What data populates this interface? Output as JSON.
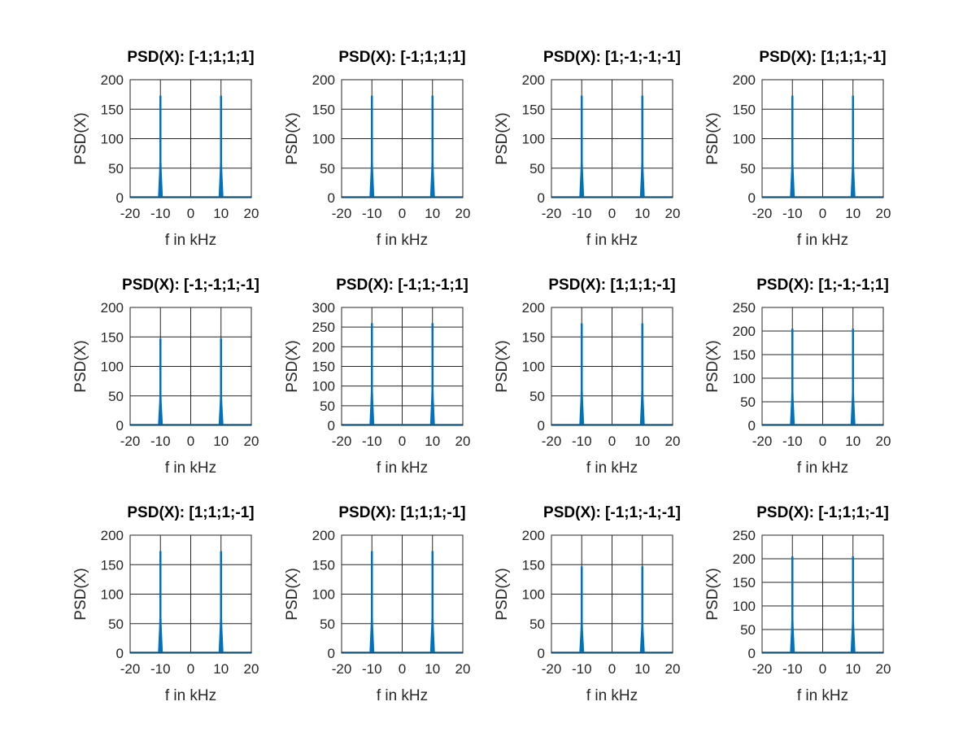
{
  "chart_data": [
    {
      "type": "line",
      "title": "PSD(X): [-1;1;1;1]",
      "xlabel": "f in kHz",
      "ylabel": "PSD(X)",
      "xlim": [
        -20,
        20
      ],
      "ylim": [
        0,
        200
      ],
      "xticks": [
        -20,
        -10,
        0,
        10,
        20
      ],
      "yticks": [
        0,
        50,
        100,
        150,
        200
      ],
      "grid": true,
      "color": "#0072bd",
      "series": [
        {
          "x": [
            -10,
            10
          ],
          "values": [
            173,
            173
          ]
        }
      ]
    },
    {
      "type": "line",
      "title": "PSD(X): [-1;1;1;1]",
      "xlabel": "f in kHz",
      "ylabel": "PSD(X)",
      "xlim": [
        -20,
        20
      ],
      "ylim": [
        0,
        200
      ],
      "xticks": [
        -20,
        -10,
        0,
        10,
        20
      ],
      "yticks": [
        0,
        50,
        100,
        150,
        200
      ],
      "grid": true,
      "color": "#0072bd",
      "series": [
        {
          "x": [
            -10,
            10
          ],
          "values": [
            173,
            173
          ]
        }
      ]
    },
    {
      "type": "line",
      "title": "PSD(X): [1;-1;-1;-1]",
      "xlabel": "f in kHz",
      "ylabel": "PSD(X)",
      "xlim": [
        -20,
        20
      ],
      "ylim": [
        0,
        200
      ],
      "xticks": [
        -20,
        -10,
        0,
        10,
        20
      ],
      "yticks": [
        0,
        50,
        100,
        150,
        200
      ],
      "grid": true,
      "color": "#0072bd",
      "series": [
        {
          "x": [
            -10,
            10
          ],
          "values": [
            173,
            173
          ]
        }
      ]
    },
    {
      "type": "line",
      "title": "PSD(X): [1;1;1;-1]",
      "xlabel": "f in kHz",
      "ylabel": "PSD(X)",
      "xlim": [
        -20,
        20
      ],
      "ylim": [
        0,
        200
      ],
      "xticks": [
        -20,
        -10,
        0,
        10,
        20
      ],
      "yticks": [
        0,
        50,
        100,
        150,
        200
      ],
      "grid": true,
      "color": "#0072bd",
      "series": [
        {
          "x": [
            -10,
            10
          ],
          "values": [
            173,
            173
          ]
        }
      ]
    },
    {
      "type": "line",
      "title": "PSD(X): [-1;-1;1;-1]",
      "xlabel": "f in kHz",
      "ylabel": "PSD(X)",
      "xlim": [
        -20,
        20
      ],
      "ylim": [
        0,
        200
      ],
      "xticks": [
        -20,
        -10,
        0,
        10,
        20
      ],
      "yticks": [
        0,
        50,
        100,
        150,
        200
      ],
      "grid": true,
      "color": "#0072bd",
      "series": [
        {
          "x": [
            -10,
            10
          ],
          "values": [
            147,
            147
          ]
        }
      ]
    },
    {
      "type": "line",
      "title": "PSD(X): [-1;1;-1;1]",
      "xlabel": "f in kHz",
      "ylabel": "PSD(X)",
      "xlim": [
        -20,
        20
      ],
      "ylim": [
        0,
        300
      ],
      "xticks": [
        -20,
        -10,
        0,
        10,
        20
      ],
      "yticks": [
        0,
        50,
        100,
        150,
        200,
        250,
        300
      ],
      "grid": true,
      "color": "#0072bd",
      "series": [
        {
          "x": [
            -10,
            10
          ],
          "values": [
            260,
            260
          ]
        }
      ]
    },
    {
      "type": "line",
      "title": "PSD(X): [1;1;1;-1]",
      "xlabel": "f in kHz",
      "ylabel": "PSD(X)",
      "xlim": [
        -20,
        20
      ],
      "ylim": [
        0,
        200
      ],
      "xticks": [
        -20,
        -10,
        0,
        10,
        20
      ],
      "yticks": [
        0,
        50,
        100,
        150,
        200
      ],
      "grid": true,
      "color": "#0072bd",
      "series": [
        {
          "x": [
            -10,
            10
          ],
          "values": [
            173,
            173
          ]
        }
      ]
    },
    {
      "type": "line",
      "title": "PSD(X): [1;-1;-1;1]",
      "xlabel": "f in kHz",
      "ylabel": "PSD(X)",
      "xlim": [
        -20,
        20
      ],
      "ylim": [
        0,
        250
      ],
      "xticks": [
        -20,
        -10,
        0,
        10,
        20
      ],
      "yticks": [
        0,
        50,
        100,
        150,
        200,
        250
      ],
      "grid": true,
      "color": "#0072bd",
      "series": [
        {
          "x": [
            -10,
            10
          ],
          "values": [
            205,
            205
          ]
        }
      ]
    },
    {
      "type": "line",
      "title": "PSD(X): [1;1;1;-1]",
      "xlabel": "f in kHz",
      "ylabel": "PSD(X)",
      "xlim": [
        -20,
        20
      ],
      "ylim": [
        0,
        200
      ],
      "xticks": [
        -20,
        -10,
        0,
        10,
        20
      ],
      "yticks": [
        0,
        50,
        100,
        150,
        200
      ],
      "grid": true,
      "color": "#0072bd",
      "series": [
        {
          "x": [
            -10,
            10
          ],
          "values": [
            173,
            173
          ]
        }
      ]
    },
    {
      "type": "line",
      "title": "PSD(X): [1;1;1;-1]",
      "xlabel": "f in kHz",
      "ylabel": "PSD(X)",
      "xlim": [
        -20,
        20
      ],
      "ylim": [
        0,
        200
      ],
      "xticks": [
        -20,
        -10,
        0,
        10,
        20
      ],
      "yticks": [
        0,
        50,
        100,
        150,
        200
      ],
      "grid": true,
      "color": "#0072bd",
      "series": [
        {
          "x": [
            -10,
            10
          ],
          "values": [
            173,
            173
          ]
        }
      ]
    },
    {
      "type": "line",
      "title": "PSD(X): [-1;1;-1;-1]",
      "xlabel": "f in kHz",
      "ylabel": "PSD(X)",
      "xlim": [
        -20,
        20
      ],
      "ylim": [
        0,
        200
      ],
      "xticks": [
        -20,
        -10,
        0,
        10,
        20
      ],
      "yticks": [
        0,
        50,
        100,
        150,
        200
      ],
      "grid": true,
      "color": "#0072bd",
      "series": [
        {
          "x": [
            -10,
            10
          ],
          "values": [
            147,
            147
          ]
        }
      ]
    },
    {
      "type": "line",
      "title": "PSD(X): [-1;1;1;-1]",
      "xlabel": "f in kHz",
      "ylabel": "PSD(X)",
      "xlim": [
        -20,
        20
      ],
      "ylim": [
        0,
        250
      ],
      "xticks": [
        -20,
        -10,
        0,
        10,
        20
      ],
      "yticks": [
        0,
        50,
        100,
        150,
        200,
        250
      ],
      "grid": true,
      "color": "#0072bd",
      "series": [
        {
          "x": [
            -10,
            10
          ],
          "values": [
            205,
            205
          ]
        }
      ]
    }
  ]
}
